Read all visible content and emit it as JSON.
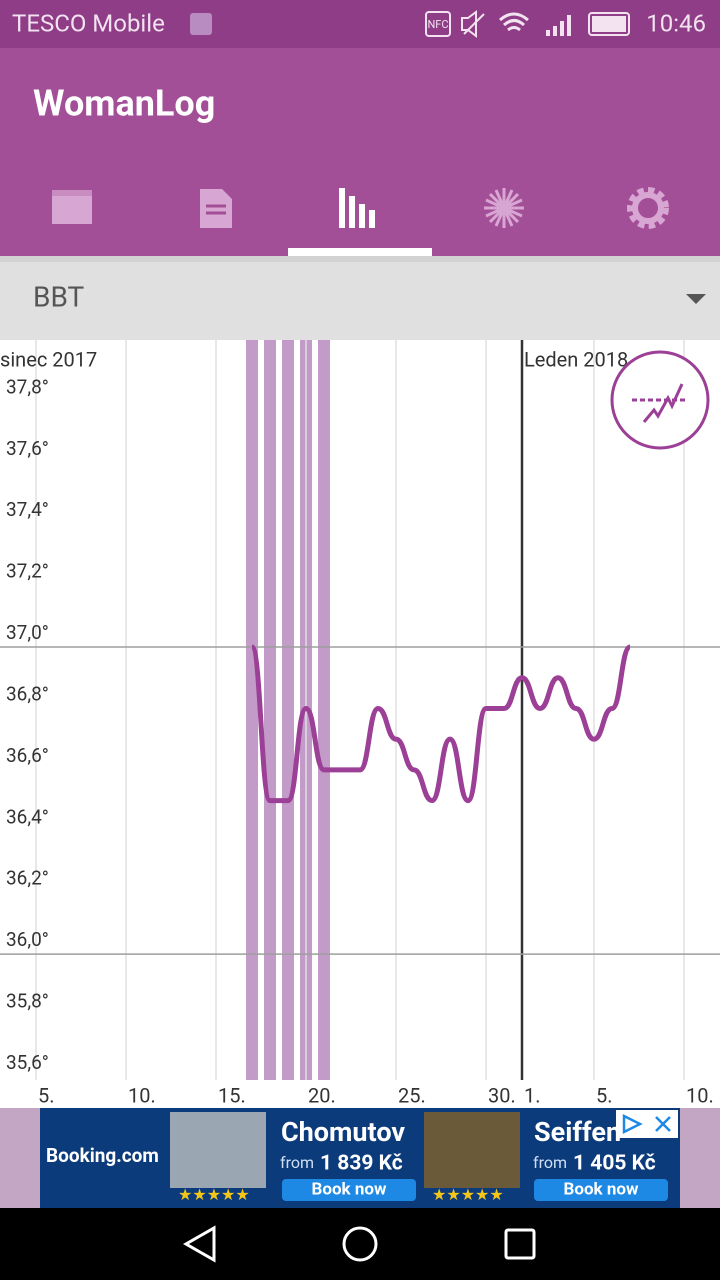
{
  "status_bar": {
    "carrier": "TESCO Mobile",
    "nfc": "NFC",
    "time": "10:46"
  },
  "app_bar": {
    "title": "WomanLog"
  },
  "dropdown": {
    "label": "BBT"
  },
  "chart_data": {
    "type": "line",
    "color": "#9c3f96",
    "x": [
      "2017-12-17",
      "2017-12-18",
      "2017-12-19",
      "2017-12-20",
      "2017-12-21",
      "2017-12-22",
      "2017-12-23",
      "2017-12-24",
      "2017-12-25",
      "2017-12-26",
      "2017-12-27",
      "2017-12-28",
      "2017-12-29",
      "2017-12-30",
      "2017-12-31",
      "2018-01-01",
      "2018-01-02",
      "2018-01-03",
      "2018-01-04",
      "2018-01-05",
      "2018-01-06",
      "2018-01-07"
    ],
    "values": [
      37.0,
      36.5,
      36.5,
      36.8,
      36.6,
      36.6,
      36.6,
      36.8,
      36.7,
      36.6,
      36.5,
      36.7,
      36.5,
      36.8,
      36.8,
      36.9,
      36.8,
      36.9,
      36.8,
      36.7,
      36.8,
      37.0
    ],
    "xlim": [
      "2017-12-03",
      "2018-01-12"
    ],
    "xticks": [
      {
        "value": "2017-12-05",
        "label": "5."
      },
      {
        "value": "2017-12-10",
        "label": "10."
      },
      {
        "value": "2017-12-15",
        "label": "15."
      },
      {
        "value": "2017-12-20",
        "label": "20."
      },
      {
        "value": "2017-12-25",
        "label": "25."
      },
      {
        "value": "2017-12-30",
        "label": "30."
      },
      {
        "value": "2018-01-01",
        "label": "1."
      },
      {
        "value": "2018-01-05",
        "label": "5."
      },
      {
        "value": "2018-01-10",
        "label": "10."
      }
    ],
    "ylim": [
      35.59,
      38.0
    ],
    "yticks": [
      {
        "value": 37.8,
        "label": "37,8°"
      },
      {
        "value": 37.6,
        "label": "37,6°"
      },
      {
        "value": 37.4,
        "label": "37,4°"
      },
      {
        "value": 37.2,
        "label": "37,2°"
      },
      {
        "value": 37.0,
        "label": "37,0°"
      },
      {
        "value": 36.8,
        "label": "36,8°"
      },
      {
        "value": 36.6,
        "label": "36,6°"
      },
      {
        "value": 36.4,
        "label": "36,4°"
      },
      {
        "value": 36.2,
        "label": "36,2°"
      },
      {
        "value": 36.0,
        "label": "36,0°"
      },
      {
        "value": 35.8,
        "label": "35,8°"
      },
      {
        "value": 35.6,
        "label": "35,6°"
      }
    ],
    "month_labels": [
      {
        "value": "2017-12-01",
        "label": "sinec 2017"
      },
      {
        "value": "2018-01-01",
        "label": "Leden 2018"
      }
    ],
    "period_days": [
      "2017-12-17",
      "2017-12-18",
      "2017-12-19",
      "2017-12-20",
      "2017-12-21"
    ],
    "period_color": "#c39bc8"
  },
  "ad": {
    "brand": "Booking.com",
    "offers": [
      {
        "city": "Chomutov",
        "from": "from",
        "price": "1 839 Kč",
        "button": "Book now"
      },
      {
        "city": "Seiffen",
        "from": "from",
        "price": "1 405 Kč",
        "button": "Book now"
      }
    ]
  }
}
